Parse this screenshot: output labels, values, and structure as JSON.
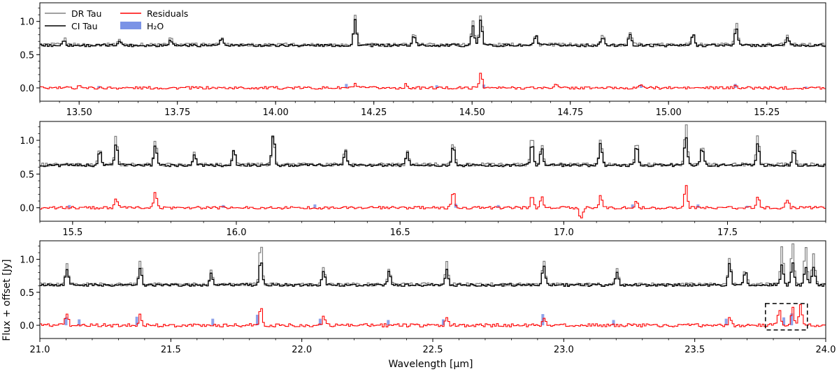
{
  "figure": {
    "ylabel": "Flux + offset [Jy]",
    "xlabel": "Wavelength [μm]",
    "legend": {
      "placement": "top-left",
      "entries": [
        {
          "label": "DR Tau",
          "color": "#808080",
          "kind": "line"
        },
        {
          "label": "CI Tau",
          "color": "#000000",
          "kind": "line"
        },
        {
          "label": "Residuals",
          "color": "#ff0000",
          "kind": "line"
        },
        {
          "label": "H₂O",
          "color": "#7b93e6",
          "kind": "patch"
        }
      ]
    },
    "colors": {
      "dr_tau": "#808080",
      "ci_tau": "#000000",
      "residuals": "#ff0000",
      "h2o": "#7b93e6"
    }
  },
  "chart_data": [
    {
      "type": "line",
      "panel": 1,
      "xlim": [
        13.4,
        15.4
      ],
      "ylim": [
        -0.2,
        1.28
      ],
      "xticks": [
        13.5,
        13.75,
        14.0,
        14.25,
        14.5,
        14.75,
        15.0,
        15.25
      ],
      "xtick_labels": [
        "13.50",
        "13.75",
        "14.00",
        "14.25",
        "14.50",
        "14.75",
        "15.00",
        "15.25"
      ],
      "yticks": [
        0.0,
        0.5,
        1.0
      ],
      "ytick_labels": [
        "0.0",
        "0.5",
        "1.0"
      ],
      "series": [
        {
          "name": "DR Tau",
          "color": "#808080",
          "baseline": 0.65,
          "noise": 0.025,
          "peaks": [
            [
              13.46,
              0.74
            ],
            [
              13.6,
              0.74
            ],
            [
              13.73,
              0.76
            ],
            [
              13.86,
              0.75
            ],
            [
              14.2,
              1.08
            ],
            [
              14.35,
              0.82
            ],
            [
              14.5,
              0.99
            ],
            [
              14.52,
              1.12
            ],
            [
              14.66,
              0.8
            ],
            [
              14.83,
              0.79
            ],
            [
              14.9,
              0.85
            ],
            [
              15.06,
              0.82
            ],
            [
              15.17,
              0.97
            ],
            [
              15.3,
              0.78
            ]
          ]
        },
        {
          "name": "CI Tau",
          "color": "#000000",
          "baseline": 0.64,
          "noise": 0.02,
          "peaks": [
            [
              13.46,
              0.72
            ],
            [
              13.6,
              0.72
            ],
            [
              13.73,
              0.74
            ],
            [
              13.86,
              0.73
            ],
            [
              14.2,
              1.02
            ],
            [
              14.35,
              0.8
            ],
            [
              14.5,
              0.93
            ],
            [
              14.52,
              1.01
            ],
            [
              14.66,
              0.79
            ],
            [
              14.83,
              0.77
            ],
            [
              14.9,
              0.82
            ],
            [
              15.06,
              0.8
            ],
            [
              15.17,
              0.92
            ],
            [
              15.3,
              0.76
            ]
          ]
        },
        {
          "name": "Residuals",
          "color": "#ff0000",
          "baseline": 0.0,
          "noise": 0.02,
          "peaks": [
            [
              13.5,
              0.05
            ],
            [
              14.2,
              0.06
            ],
            [
              14.33,
              0.05
            ],
            [
              14.52,
              0.23
            ],
            [
              14.71,
              0.07
            ],
            [
              14.93,
              0.06
            ],
            [
              15.17,
              0.05
            ]
          ]
        },
        {
          "name": "H₂O",
          "color": "#7b93e6",
          "kind": "bars",
          "lines": [
            [
              13.55,
              0.03
            ],
            [
              14.18,
              0.06
            ],
            [
              14.41,
              0.04
            ],
            [
              14.53,
              0.05
            ],
            [
              14.93,
              0.05
            ],
            [
              15.17,
              0.06
            ],
            [
              15.35,
              0.02
            ]
          ]
        }
      ]
    },
    {
      "type": "line",
      "panel": 2,
      "xlim": [
        15.4,
        17.8
      ],
      "ylim": [
        -0.2,
        1.28
      ],
      "xticks": [
        15.5,
        16.0,
        16.5,
        17.0,
        17.5
      ],
      "xtick_labels": [
        "15.5",
        "16.0",
        "16.5",
        "17.0",
        "17.5"
      ],
      "yticks": [
        0.0,
        0.5,
        1.0
      ],
      "ytick_labels": [
        "0.0",
        "0.5",
        "1.0"
      ],
      "series": [
        {
          "name": "DR Tau",
          "color": "#808080",
          "baseline": 0.64,
          "noise": 0.025,
          "peaks": [
            [
              15.58,
              0.88
            ],
            [
              15.63,
              1.06
            ],
            [
              15.75,
              1.0
            ],
            [
              15.87,
              0.82
            ],
            [
              15.99,
              0.87
            ],
            [
              16.11,
              1.08
            ],
            [
              16.33,
              0.86
            ],
            [
              16.52,
              0.84
            ],
            [
              16.66,
              0.98
            ],
            [
              16.9,
              1.07
            ],
            [
              16.93,
              0.93
            ],
            [
              17.11,
              1.02
            ],
            [
              17.22,
              1.0
            ],
            [
              17.37,
              1.27
            ],
            [
              17.42,
              0.95
            ],
            [
              17.59,
              1.08
            ],
            [
              17.7,
              0.9
            ]
          ]
        },
        {
          "name": "CI Tau",
          "color": "#000000",
          "baseline": 0.63,
          "noise": 0.02,
          "peaks": [
            [
              15.58,
              0.86
            ],
            [
              15.63,
              0.96
            ],
            [
              15.75,
              0.92
            ],
            [
              15.87,
              0.8
            ],
            [
              15.99,
              0.85
            ],
            [
              16.11,
              1.1
            ],
            [
              16.33,
              0.84
            ],
            [
              16.52,
              0.82
            ],
            [
              16.66,
              0.92
            ],
            [
              16.9,
              0.95
            ],
            [
              16.93,
              0.88
            ],
            [
              17.11,
              0.95
            ],
            [
              17.22,
              0.93
            ],
            [
              17.37,
              1.05
            ],
            [
              17.42,
              0.9
            ],
            [
              17.59,
              0.96
            ],
            [
              17.7,
              0.85
            ]
          ]
        },
        {
          "name": "Residuals",
          "color": "#ff0000",
          "baseline": 0.0,
          "noise": 0.02,
          "peaks": [
            [
              15.63,
              0.15
            ],
            [
              15.75,
              0.22
            ],
            [
              16.66,
              0.25
            ],
            [
              16.9,
              0.2
            ],
            [
              16.93,
              0.15
            ],
            [
              17.11,
              0.2
            ],
            [
              17.22,
              0.1
            ],
            [
              17.37,
              0.35
            ],
            [
              17.59,
              0.18
            ],
            [
              17.68,
              0.12
            ],
            [
              17.05,
              -0.17
            ]
          ]
        },
        {
          "name": "H₂O",
          "color": "#7b93e6",
          "kind": "bars",
          "lines": [
            [
              15.49,
              0.04
            ],
            [
              15.96,
              0.04
            ],
            [
              16.24,
              0.05
            ],
            [
              16.67,
              0.06
            ],
            [
              16.8,
              0.04
            ],
            [
              17.21,
              0.05
            ],
            [
              17.41,
              0.05
            ],
            [
              17.56,
              0.03
            ]
          ]
        }
      ]
    },
    {
      "type": "line",
      "panel": 3,
      "xlim": [
        21.0,
        24.0
      ],
      "ylim": [
        -0.2,
        1.28
      ],
      "xticks": [
        21.0,
        21.5,
        22.0,
        22.5,
        23.0,
        23.5,
        24.0
      ],
      "xtick_labels": [
        "21.0",
        "21.5",
        "22.0",
        "22.5",
        "23.0",
        "23.5",
        "24.0"
      ],
      "yticks": [
        0.0,
        0.5,
        1.0
      ],
      "ytick_labels": [
        "0.0",
        "0.5",
        "1.0"
      ],
      "series": [
        {
          "name": "DR Tau",
          "color": "#808080",
          "baseline": 0.62,
          "noise": 0.025,
          "peaks": [
            [
              21.1,
              0.95
            ],
            [
              21.38,
              1.0
            ],
            [
              21.65,
              0.82
            ],
            [
              21.84,
              1.27
            ],
            [
              22.08,
              0.9
            ],
            [
              22.33,
              0.88
            ],
            [
              22.55,
              0.95
            ],
            [
              22.92,
              1.0
            ],
            [
              23.2,
              0.85
            ],
            [
              23.63,
              1.0
            ],
            [
              23.69,
              0.85
            ],
            [
              23.83,
              1.2
            ],
            [
              23.87,
              1.25
            ],
            [
              23.92,
              1.22
            ],
            [
              23.95,
              1.1
            ]
          ]
        },
        {
          "name": "CI Tau",
          "color": "#000000",
          "baseline": 0.61,
          "noise": 0.02,
          "peaks": [
            [
              21.1,
              0.85
            ],
            [
              21.38,
              0.88
            ],
            [
              21.65,
              0.78
            ],
            [
              21.84,
              1.0
            ],
            [
              22.08,
              0.84
            ],
            [
              22.33,
              0.82
            ],
            [
              22.55,
              0.86
            ],
            [
              22.92,
              0.9
            ],
            [
              23.2,
              0.8
            ],
            [
              23.63,
              0.95
            ],
            [
              23.69,
              0.8
            ],
            [
              23.83,
              0.92
            ],
            [
              23.87,
              0.95
            ],
            [
              23.92,
              0.9
            ],
            [
              23.95,
              0.88
            ]
          ]
        },
        {
          "name": "Residuals",
          "color": "#ff0000",
          "baseline": 0.0,
          "noise": 0.025,
          "peaks": [
            [
              21.1,
              0.18
            ],
            [
              21.38,
              0.16
            ],
            [
              21.84,
              0.28
            ],
            [
              22.08,
              0.12
            ],
            [
              22.55,
              0.12
            ],
            [
              22.92,
              0.13
            ],
            [
              23.63,
              0.1
            ],
            [
              23.82,
              0.25
            ],
            [
              23.87,
              0.27
            ],
            [
              23.9,
              0.33
            ]
          ]
        },
        {
          "name": "H₂O",
          "color": "#7b93e6",
          "kind": "bars",
          "lines": [
            [
              21.1,
              0.12
            ],
            [
              21.15,
              0.09
            ],
            [
              21.37,
              0.13
            ],
            [
              21.66,
              0.1
            ],
            [
              21.83,
              0.16
            ],
            [
              22.07,
              0.1
            ],
            [
              22.33,
              0.08
            ],
            [
              22.54,
              0.09
            ],
            [
              22.92,
              0.17
            ],
            [
              23.19,
              0.08
            ],
            [
              23.62,
              0.1
            ],
            [
              23.84,
              0.12
            ],
            [
              23.87,
              0.18
            ]
          ]
        }
      ],
      "annotation": {
        "type": "dashed-box",
        "x_range": [
          23.77,
          23.93
        ],
        "y_range": [
          -0.07,
          0.33
        ]
      }
    }
  ]
}
